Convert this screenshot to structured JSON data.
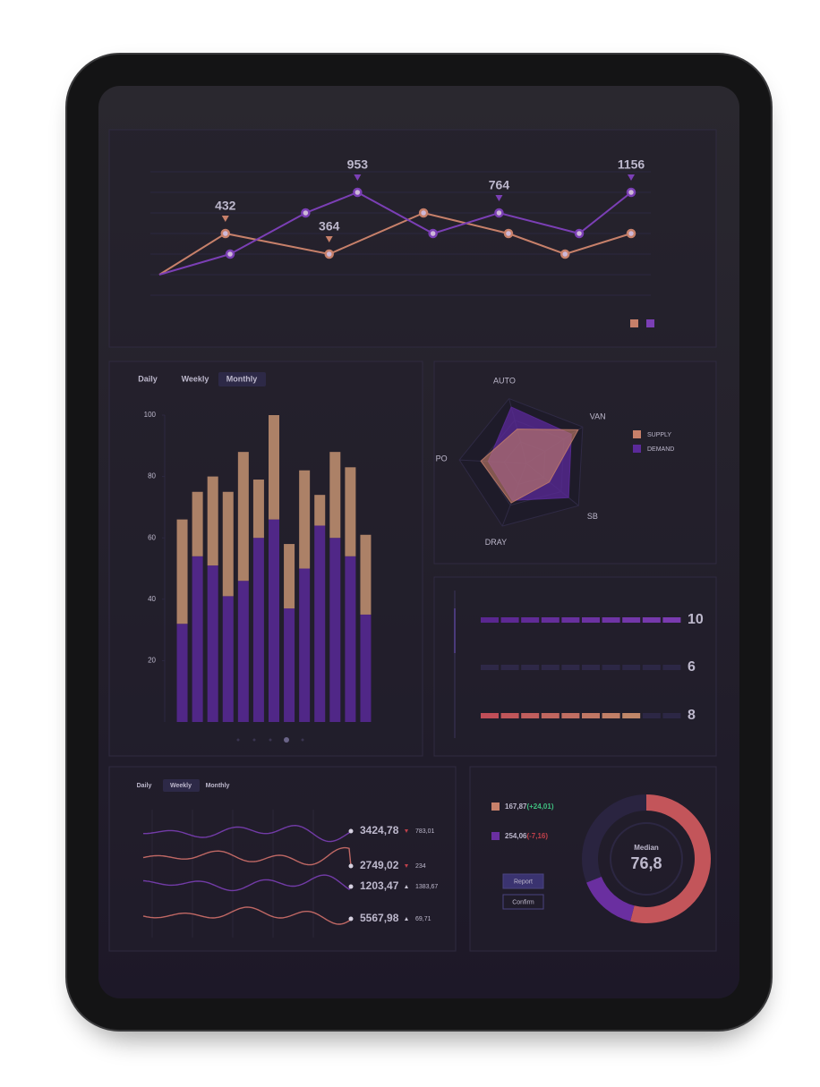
{
  "chart_data": [
    {
      "type": "line",
      "xlim": [
        0,
        100
      ],
      "ylim": [
        0,
        6
      ],
      "yticks": [
        0,
        1,
        2,
        3,
        4,
        5,
        6
      ],
      "grid": true,
      "series": [
        {
          "color": "#c7806a",
          "x": [
            0,
            14,
            36,
            56,
            74,
            86,
            100
          ],
          "values": [
            1,
            3,
            2,
            4,
            3,
            2,
            3
          ]
        },
        {
          "color": "#7b3fb5",
          "x": [
            0,
            15,
            31,
            42,
            58,
            72,
            89,
            100
          ],
          "values": [
            1,
            2,
            4,
            5,
            3,
            4,
            3,
            5
          ]
        }
      ],
      "annotations": [
        "432",
        "364",
        "953",
        "764",
        "1156"
      ]
    },
    {
      "type": "bar",
      "stacked": true,
      "tabs": [
        "Daily",
        "Weekly",
        "Monthly"
      ],
      "active_tab": 2,
      "categories": [
        null,
        null,
        null,
        null,
        null,
        null,
        null,
        null,
        null,
        null,
        null,
        null,
        null
      ],
      "ylim": [
        0,
        100
      ],
      "yticks": [
        20,
        40,
        60,
        80,
        100
      ],
      "series": [
        {
          "color": "#55288f",
          "values": [
            32,
            54,
            51,
            41,
            46,
            60,
            66,
            37,
            50,
            64,
            60,
            54,
            35
          ]
        },
        {
          "color": "#b88a6c",
          "values": [
            34,
            21,
            29,
            34,
            42,
            19,
            34,
            21,
            32,
            10,
            28,
            29,
            26
          ]
        }
      ]
    },
    {
      "type": "radar",
      "categories": [
        "AUTO",
        "VAN",
        "SB",
        "DRAY",
        "PO"
      ],
      "rlim": [
        0,
        100
      ],
      "series": [
        {
          "name": "SUPPLY",
          "color": "#c7806a",
          "values": [
            53,
            92,
            44,
            63,
            68
          ]
        },
        {
          "name": "DEMAND",
          "color": "#5b2a9a",
          "values": [
            87,
            80,
            81,
            59,
            57
          ]
        }
      ]
    },
    {
      "type": "progress",
      "xlim": [
        0,
        10
      ],
      "values": [
        10,
        6,
        8
      ],
      "colors": [
        [
          "#5a2790",
          "#7a3bb0"
        ],
        [
          "#2e2847",
          "#2e2847"
        ],
        [
          "#c04e58",
          "#c0976e"
        ]
      ],
      "dim": [
        false,
        true,
        false
      ]
    },
    {
      "type": "donut",
      "values": [
        54,
        15,
        31
      ],
      "colors": [
        "#c3555a",
        "#6a2fa0",
        "#2a2440"
      ],
      "center_label": "Median",
      "center_value": "76,8",
      "legend": [
        {
          "value": "167,87",
          "change": "(+24,01)",
          "color": "#c7806a",
          "change_color": "#3fbf7f"
        },
        {
          "value": "254,06",
          "change": "(-7,16)",
          "color": "#6a2fa0",
          "change_color": "#c0404a"
        }
      ],
      "buttons": [
        "Report",
        "Confirm"
      ]
    }
  ],
  "sparklines": {
    "tabs": [
      "Daily",
      "Weekly",
      "Monthly"
    ],
    "active_tab": 1,
    "rows": [
      {
        "value": "3424,78",
        "change": "783,01",
        "trend": "down",
        "color": "#7b3fb5"
      },
      {
        "value": "2749,02",
        "change": "234",
        "trend": "down",
        "color": "#d0706a"
      },
      {
        "value": "1203,47",
        "change": "1383,67",
        "trend": "up",
        "color": "#7b3fb5"
      },
      {
        "value": "5567,98",
        "change": "69,71",
        "trend": "up",
        "color": "#d0706a"
      }
    ]
  }
}
